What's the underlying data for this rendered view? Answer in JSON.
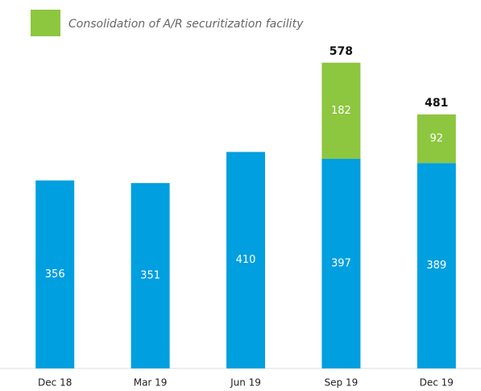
{
  "chart_data": {
    "type": "stacked_bar",
    "categories": [
      "Dec 18",
      "Mar 19",
      "Jun 19",
      "Sep 19",
      "Dec 19"
    ],
    "series": [
      {
        "color": "#009fdf",
        "values": [
          356,
          351,
          410,
          397,
          389
        ]
      },
      {
        "name": "Consolidation of A/R securitization facility",
        "color": "#8dc63f",
        "values": [
          null,
          null,
          null,
          182,
          92
        ]
      }
    ],
    "totals": [
      null,
      null,
      null,
      578,
      481
    ],
    "ylim": [
      0,
      600
    ]
  }
}
